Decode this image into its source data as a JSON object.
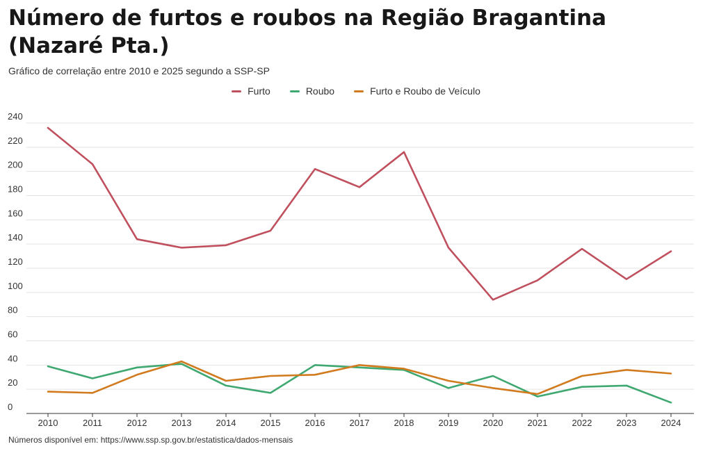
{
  "chart_data": {
    "type": "line",
    "title": "Número de furtos e roubos na Região Bragantina (Nazaré Pta.)",
    "subtitle": "Gráfico de correlação entre 2010 e 2025 segundo a SSP-SP",
    "source": "Números disponível em: https://www.ssp.sp.gov.br/estatistica/dados-mensais",
    "legend_position": "top-center",
    "grid": true,
    "ylim": [
      0,
      240
    ],
    "yticks": [
      0,
      20,
      40,
      60,
      80,
      100,
      120,
      140,
      160,
      180,
      200,
      220,
      240
    ],
    "x": [
      "2010",
      "2011",
      "2012",
      "2013",
      "2014",
      "2015",
      "2016",
      "2017",
      "2018",
      "2019",
      "2020",
      "2021",
      "2022",
      "2023",
      "2024"
    ],
    "series": [
      {
        "name": "Furto",
        "color": "#c0505e",
        "values": [
          236,
          206,
          144,
          137,
          139,
          151,
          202,
          187,
          216,
          137,
          94,
          110,
          136,
          111,
          134
        ]
      },
      {
        "name": "Roubo",
        "color": "#3fa870",
        "values": [
          39,
          29,
          38,
          41,
          23,
          17,
          40,
          38,
          36,
          21,
          31,
          14,
          22,
          23,
          9
        ]
      },
      {
        "name": "Furto e Roubo de Veículo",
        "color": "#d17a1e",
        "values": [
          18,
          17,
          32,
          43,
          27,
          31,
          32,
          40,
          37,
          27,
          21,
          16,
          31,
          36,
          33
        ]
      }
    ]
  }
}
